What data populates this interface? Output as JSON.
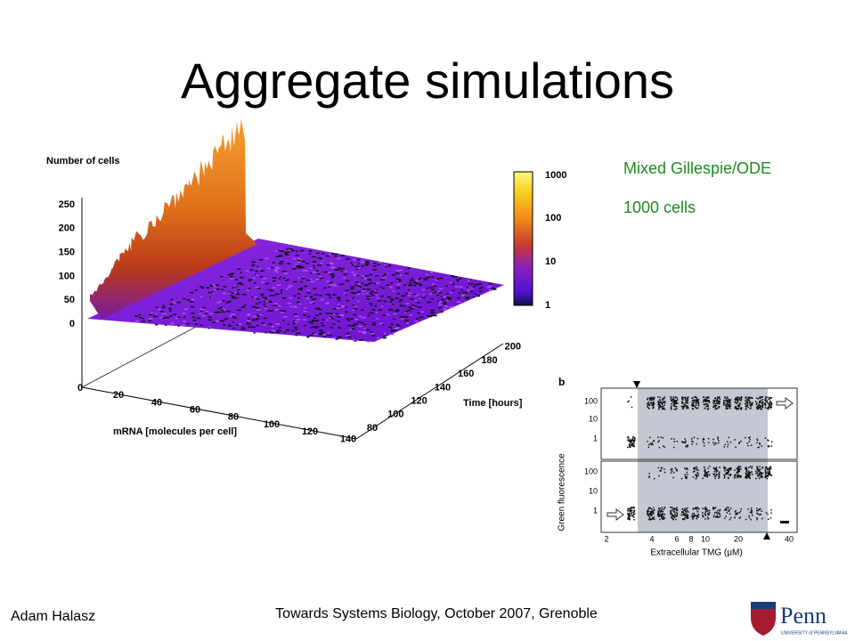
{
  "title": "Aggregate simulations",
  "notes": [
    "Mixed Gillespie/ODE",
    "1000 cells"
  ],
  "footer": {
    "author": "Adam Halasz",
    "event": "Towards Systems Biology, October 2007, Grenoble"
  },
  "logo": {
    "name": "Penn",
    "subtitle": "UNIVERSITY of PENNSYLVANIA"
  },
  "surface_plot": {
    "z_label": "Number of cells",
    "z_ticks": [
      0,
      50,
      100,
      150,
      200,
      250
    ],
    "x_label": "mRNA [molecules per cell]",
    "x_ticks": [
      0,
      20,
      40,
      60,
      80,
      100,
      120,
      140
    ],
    "y_label": "Time [hours]",
    "y_ticks": [
      80,
      100,
      120,
      140,
      160,
      180,
      200
    ],
    "colorbar_ticks": [
      1,
      10,
      100,
      1000
    ]
  },
  "inset": {
    "panel": "b",
    "y_label": "Green fluorescence",
    "y_ticks_top": [
      1,
      10,
      100
    ],
    "y_ticks_bottom": [
      1,
      10,
      100
    ],
    "x_label": "Extracellular TMG (μM)",
    "x_ticks": [
      2,
      4,
      6,
      8,
      10,
      20,
      40
    ]
  }
}
